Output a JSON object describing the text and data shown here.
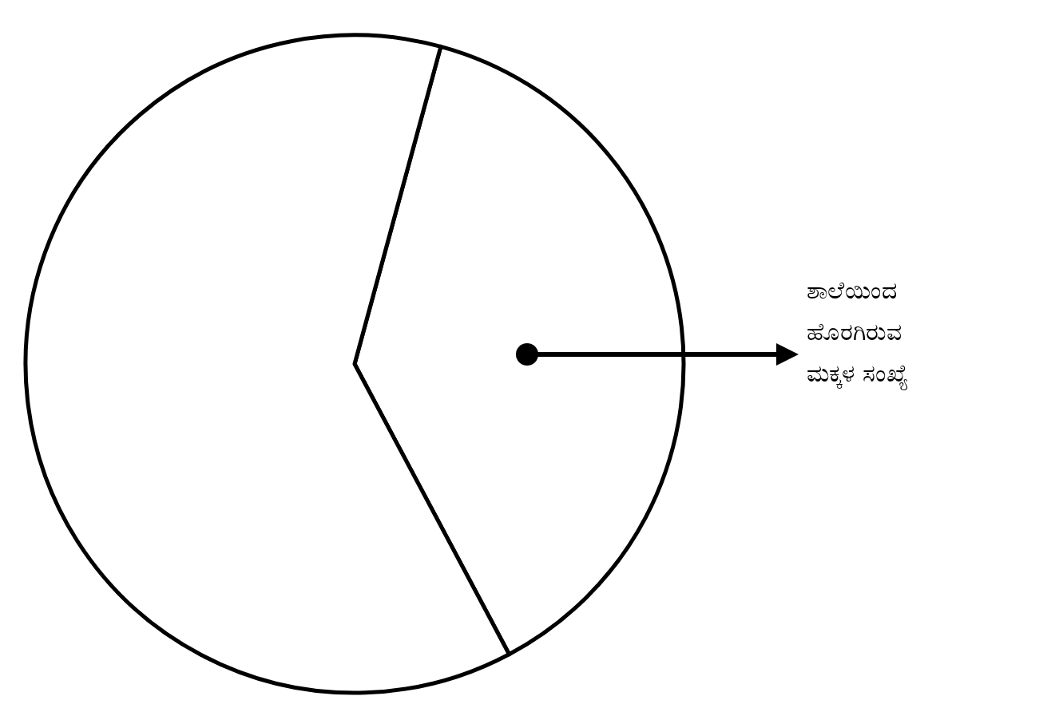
{
  "chart_data": {
    "type": "pie",
    "categories": [
      "ಶಾಲೆಯಿಂದ ಹೊರಗಿರುವ ಮಕ್ಕಳ ಸಂಖ್ಯೆ",
      null
    ],
    "values": [
      38,
      62
    ],
    "colors": [
      "#ffffff",
      "#ffffff"
    ]
  }
}
